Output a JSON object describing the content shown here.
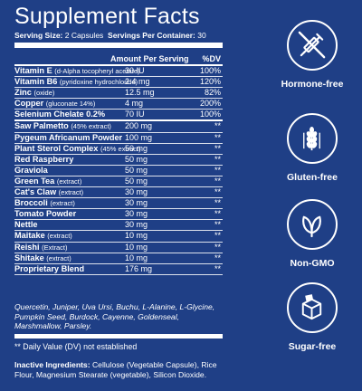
{
  "title": "Supplement Facts",
  "serving": {
    "size_label": "Serving Size:",
    "size_value": "2 Capsules",
    "per_container_label": "Servings Per Container:",
    "per_container_value": "30"
  },
  "header": {
    "amount": "Amount Per Serving",
    "dv": "%DV"
  },
  "rows": [
    {
      "name": "Vitamin E",
      "sub": "(d-Alpha tocopheryl acetate)",
      "amount": "30 IU",
      "dv": "100%"
    },
    {
      "name": "Vitamin B6",
      "sub": "(pyridoxine hydrochloride)",
      "amount": "2.4 mg",
      "dv": "120%"
    },
    {
      "name": "Zinc",
      "sub": "(oxide)",
      "amount": "12.5 mg",
      "dv": "82%"
    },
    {
      "name": "Copper",
      "sub": "(gluconate 14%)",
      "amount": "4 mg",
      "dv": "200%"
    },
    {
      "name": "Selenium Chelate 0.2%",
      "sub": "",
      "amount": "70 IU",
      "dv": "100%"
    },
    {
      "name": "Saw Palmetto",
      "sub": "(45% extract)",
      "amount": "200 mg",
      "dv": "**"
    },
    {
      "name": "Pygeum Africanum Powder",
      "sub": "",
      "amount": "100 mg",
      "dv": "**"
    },
    {
      "name": "Plant Sterol Complex",
      "sub": "(45% extract)",
      "amount": "50 mg",
      "dv": "**"
    },
    {
      "name": "Red Raspberry",
      "sub": "",
      "amount": "50 mg",
      "dv": "**"
    },
    {
      "name": "Graviola",
      "sub": "",
      "amount": "50 mg",
      "dv": "**"
    },
    {
      "name": "Green Tea",
      "sub": "(extract)",
      "amount": "50 mg",
      "dv": "**"
    },
    {
      "name": "Cat's Claw",
      "sub": "(extract)",
      "amount": "30 mg",
      "dv": "**"
    },
    {
      "name": "Broccoli",
      "sub": "(extract)",
      "amount": "30 mg",
      "dv": "**"
    },
    {
      "name": "Tomato Powder",
      "sub": "",
      "amount": "30 mg",
      "dv": "**"
    },
    {
      "name": "Nettle",
      "sub": "",
      "amount": "30 mg",
      "dv": "**"
    },
    {
      "name": "Maitake",
      "sub": "(extract)",
      "amount": "10 mg",
      "dv": "**"
    },
    {
      "name": "Reishi",
      "sub": "(Extract)",
      "amount": "10 mg",
      "dv": "**"
    },
    {
      "name": "Shitake",
      "sub": "(extract)",
      "amount": "10 mg",
      "dv": "**"
    },
    {
      "name": "Proprietary Blend",
      "sub": "",
      "amount": "176 mg",
      "dv": "**"
    }
  ],
  "blend_ingredients": "Quercetin, Juniper, Uva Ursi, Buchu, L-Alanine, L-Glycine, Pumpkin Seed, Burdock, Cayenne, Goldenseal, Marshmallow, Parsley.",
  "dv_note": "** Daily Value (DV) not established",
  "inactive": {
    "label": "Inactive Ingredients:",
    "text": "Cellulose (Vegetable Capsule), Rice Flour, Magnesium Stearate (vegetable), Silicon Dioxide."
  },
  "badges": [
    {
      "label": "Hormone-free",
      "icon": "no-syringe-icon"
    },
    {
      "label": "Gluten-free",
      "icon": "wheat-icon"
    },
    {
      "label": "Non-GMO",
      "icon": "leaf-icon"
    },
    {
      "label": "Sugar-free",
      "icon": "sugar-cube-icon"
    }
  ],
  "colors": {
    "background": "#1f3f86",
    "text": "#ffffff"
  }
}
